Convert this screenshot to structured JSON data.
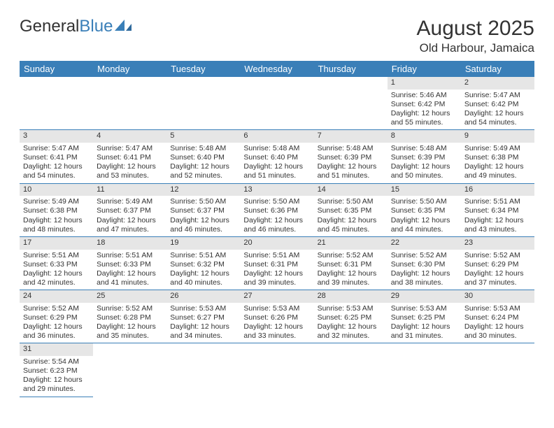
{
  "logo": {
    "text_general": "General",
    "text_blue": "Blue"
  },
  "title": "August 2025",
  "location": "Old Harbour, Jamaica",
  "colors": {
    "header_bg": "#3a7fb8",
    "header_fg": "#ffffff",
    "daynum_bg": "#e6e6e6",
    "row_border": "#3a7fb8",
    "text": "#333333",
    "background": "#ffffff"
  },
  "typography": {
    "body_font": "Arial",
    "title_size_pt": 22,
    "location_size_pt": 13,
    "header_size_pt": 10,
    "cell_size_pt": 8
  },
  "day_names": [
    "Sunday",
    "Monday",
    "Tuesday",
    "Wednesday",
    "Thursday",
    "Friday",
    "Saturday"
  ],
  "weeks": [
    [
      null,
      null,
      null,
      null,
      null,
      {
        "n": "1",
        "sunrise": "Sunrise: 5:46 AM",
        "sunset": "Sunset: 6:42 PM",
        "daylight": "Daylight: 12 hours and 55 minutes."
      },
      {
        "n": "2",
        "sunrise": "Sunrise: 5:47 AM",
        "sunset": "Sunset: 6:42 PM",
        "daylight": "Daylight: 12 hours and 54 minutes."
      }
    ],
    [
      {
        "n": "3",
        "sunrise": "Sunrise: 5:47 AM",
        "sunset": "Sunset: 6:41 PM",
        "daylight": "Daylight: 12 hours and 54 minutes."
      },
      {
        "n": "4",
        "sunrise": "Sunrise: 5:47 AM",
        "sunset": "Sunset: 6:41 PM",
        "daylight": "Daylight: 12 hours and 53 minutes."
      },
      {
        "n": "5",
        "sunrise": "Sunrise: 5:48 AM",
        "sunset": "Sunset: 6:40 PM",
        "daylight": "Daylight: 12 hours and 52 minutes."
      },
      {
        "n": "6",
        "sunrise": "Sunrise: 5:48 AM",
        "sunset": "Sunset: 6:40 PM",
        "daylight": "Daylight: 12 hours and 51 minutes."
      },
      {
        "n": "7",
        "sunrise": "Sunrise: 5:48 AM",
        "sunset": "Sunset: 6:39 PM",
        "daylight": "Daylight: 12 hours and 51 minutes."
      },
      {
        "n": "8",
        "sunrise": "Sunrise: 5:48 AM",
        "sunset": "Sunset: 6:39 PM",
        "daylight": "Daylight: 12 hours and 50 minutes."
      },
      {
        "n": "9",
        "sunrise": "Sunrise: 5:49 AM",
        "sunset": "Sunset: 6:38 PM",
        "daylight": "Daylight: 12 hours and 49 minutes."
      }
    ],
    [
      {
        "n": "10",
        "sunrise": "Sunrise: 5:49 AM",
        "sunset": "Sunset: 6:38 PM",
        "daylight": "Daylight: 12 hours and 48 minutes."
      },
      {
        "n": "11",
        "sunrise": "Sunrise: 5:49 AM",
        "sunset": "Sunset: 6:37 PM",
        "daylight": "Daylight: 12 hours and 47 minutes."
      },
      {
        "n": "12",
        "sunrise": "Sunrise: 5:50 AM",
        "sunset": "Sunset: 6:37 PM",
        "daylight": "Daylight: 12 hours and 46 minutes."
      },
      {
        "n": "13",
        "sunrise": "Sunrise: 5:50 AM",
        "sunset": "Sunset: 6:36 PM",
        "daylight": "Daylight: 12 hours and 46 minutes."
      },
      {
        "n": "14",
        "sunrise": "Sunrise: 5:50 AM",
        "sunset": "Sunset: 6:35 PM",
        "daylight": "Daylight: 12 hours and 45 minutes."
      },
      {
        "n": "15",
        "sunrise": "Sunrise: 5:50 AM",
        "sunset": "Sunset: 6:35 PM",
        "daylight": "Daylight: 12 hours and 44 minutes."
      },
      {
        "n": "16",
        "sunrise": "Sunrise: 5:51 AM",
        "sunset": "Sunset: 6:34 PM",
        "daylight": "Daylight: 12 hours and 43 minutes."
      }
    ],
    [
      {
        "n": "17",
        "sunrise": "Sunrise: 5:51 AM",
        "sunset": "Sunset: 6:33 PM",
        "daylight": "Daylight: 12 hours and 42 minutes."
      },
      {
        "n": "18",
        "sunrise": "Sunrise: 5:51 AM",
        "sunset": "Sunset: 6:33 PM",
        "daylight": "Daylight: 12 hours and 41 minutes."
      },
      {
        "n": "19",
        "sunrise": "Sunrise: 5:51 AM",
        "sunset": "Sunset: 6:32 PM",
        "daylight": "Daylight: 12 hours and 40 minutes."
      },
      {
        "n": "20",
        "sunrise": "Sunrise: 5:51 AM",
        "sunset": "Sunset: 6:31 PM",
        "daylight": "Daylight: 12 hours and 39 minutes."
      },
      {
        "n": "21",
        "sunrise": "Sunrise: 5:52 AM",
        "sunset": "Sunset: 6:31 PM",
        "daylight": "Daylight: 12 hours and 39 minutes."
      },
      {
        "n": "22",
        "sunrise": "Sunrise: 5:52 AM",
        "sunset": "Sunset: 6:30 PM",
        "daylight": "Daylight: 12 hours and 38 minutes."
      },
      {
        "n": "23",
        "sunrise": "Sunrise: 5:52 AM",
        "sunset": "Sunset: 6:29 PM",
        "daylight": "Daylight: 12 hours and 37 minutes."
      }
    ],
    [
      {
        "n": "24",
        "sunrise": "Sunrise: 5:52 AM",
        "sunset": "Sunset: 6:29 PM",
        "daylight": "Daylight: 12 hours and 36 minutes."
      },
      {
        "n": "25",
        "sunrise": "Sunrise: 5:52 AM",
        "sunset": "Sunset: 6:28 PM",
        "daylight": "Daylight: 12 hours and 35 minutes."
      },
      {
        "n": "26",
        "sunrise": "Sunrise: 5:53 AM",
        "sunset": "Sunset: 6:27 PM",
        "daylight": "Daylight: 12 hours and 34 minutes."
      },
      {
        "n": "27",
        "sunrise": "Sunrise: 5:53 AM",
        "sunset": "Sunset: 6:26 PM",
        "daylight": "Daylight: 12 hours and 33 minutes."
      },
      {
        "n": "28",
        "sunrise": "Sunrise: 5:53 AM",
        "sunset": "Sunset: 6:25 PM",
        "daylight": "Daylight: 12 hours and 32 minutes."
      },
      {
        "n": "29",
        "sunrise": "Sunrise: 5:53 AM",
        "sunset": "Sunset: 6:25 PM",
        "daylight": "Daylight: 12 hours and 31 minutes."
      },
      {
        "n": "30",
        "sunrise": "Sunrise: 5:53 AM",
        "sunset": "Sunset: 6:24 PM",
        "daylight": "Daylight: 12 hours and 30 minutes."
      }
    ],
    [
      {
        "n": "31",
        "sunrise": "Sunrise: 5:54 AM",
        "sunset": "Sunset: 6:23 PM",
        "daylight": "Daylight: 12 hours and 29 minutes."
      },
      null,
      null,
      null,
      null,
      null,
      null
    ]
  ]
}
